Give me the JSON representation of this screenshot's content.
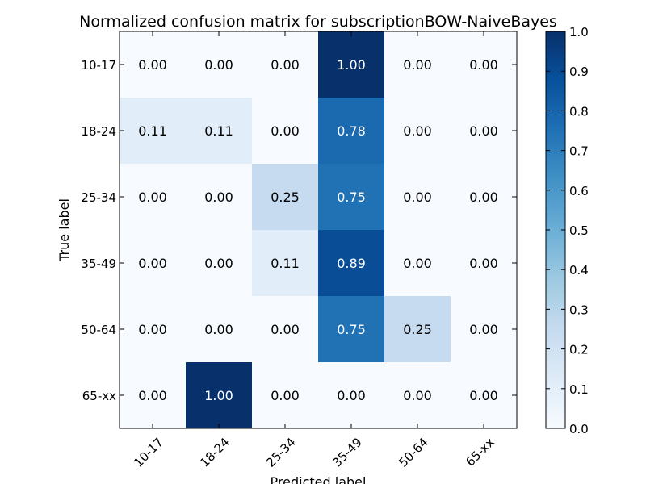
{
  "chart_data": {
    "type": "heatmap",
    "title": "Normalized confusion matrix for subscriptionBOW-NaiveBayes",
    "xlabel": "Predicted label",
    "ylabel": "True label",
    "x_categories": [
      "10-17",
      "18-24",
      "25-34",
      "35-49",
      "50-64",
      "65-xx"
    ],
    "y_categories": [
      "10-17",
      "18-24",
      "25-34",
      "35-49",
      "50-64",
      "65-xx"
    ],
    "values": [
      [
        0.0,
        0.0,
        0.0,
        1.0,
        0.0,
        0.0
      ],
      [
        0.11,
        0.11,
        0.0,
        0.78,
        0.0,
        0.0
      ],
      [
        0.0,
        0.0,
        0.25,
        0.75,
        0.0,
        0.0
      ],
      [
        0.0,
        0.0,
        0.11,
        0.89,
        0.0,
        0.0
      ],
      [
        0.0,
        0.0,
        0.0,
        0.75,
        0.25,
        0.0
      ],
      [
        0.0,
        1.0,
        0.0,
        0.0,
        0.0,
        0.0
      ]
    ],
    "value_format": "0.00",
    "colormap": "Blues",
    "colorbar": {
      "vmin": 0.0,
      "vmax": 1.0,
      "ticks": [
        "0.0",
        "0.1",
        "0.2",
        "0.3",
        "0.4",
        "0.5",
        "0.6",
        "0.7",
        "0.8",
        "0.9",
        "1.0"
      ]
    },
    "grid": false
  }
}
